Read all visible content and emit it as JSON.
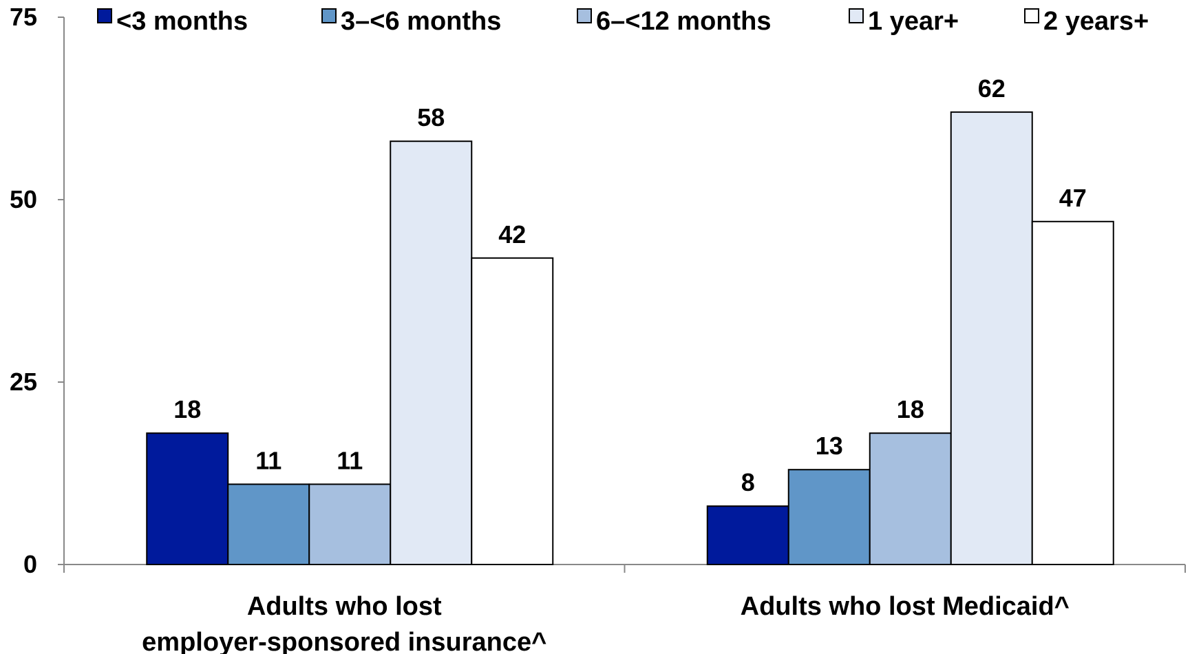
{
  "chart_data": {
    "type": "bar",
    "categories": [
      [
        "Adults who lost",
        "employer-sponsored insurance^"
      ],
      [
        "Adults who lost Medicaid^"
      ]
    ],
    "series": [
      {
        "name": "<3 months",
        "color": "#001a9c",
        "values": [
          18,
          8
        ]
      },
      {
        "name": "3–<6 months",
        "color": "#6096c8",
        "values": [
          11,
          13
        ]
      },
      {
        "name": "6–<12 months",
        "color": "#a6bfdf",
        "values": [
          11,
          18
        ]
      },
      {
        "name": "1 year+",
        "color": "#e1e9f5",
        "values": [
          58,
          62
        ]
      },
      {
        "name": "2 years+",
        "color": "#ffffff",
        "values": [
          42,
          47
        ]
      }
    ],
    "ylim": [
      0,
      75
    ],
    "yticks": [
      "0",
      "25",
      "50",
      "75"
    ],
    "data_labels": true,
    "legend_position": "top",
    "grid": false,
    "xlabel": "",
    "ylabel": ""
  }
}
